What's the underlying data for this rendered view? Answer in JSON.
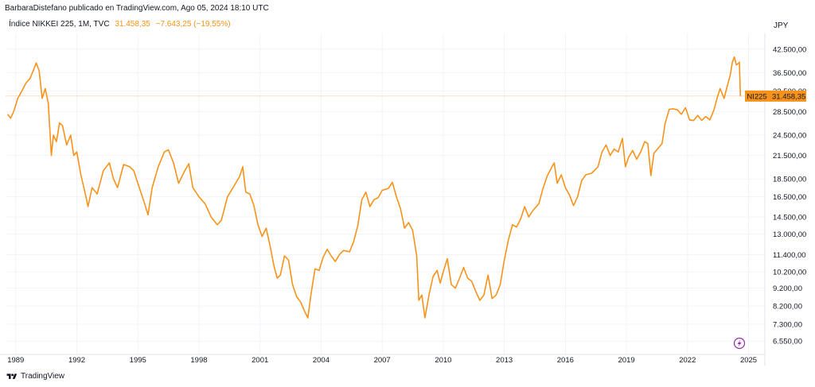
{
  "header": {
    "caption": "BarbaraDistefano publicado en TradingView.com, Ago 05, 2024 18:10 UTC"
  },
  "legend": {
    "symbol": "Índice NIKKEI 225, 1M, TVC",
    "last": "31.458,35",
    "change": "−7.643,25 (−19,55%)"
  },
  "footer": {
    "brand": "TradingView",
    "logo_icon": "tradingview-logo-icon"
  },
  "colors": {
    "line": "#f7931a",
    "price_tag": "#f7931a",
    "grid": "#f0f3fa",
    "text": "#131722",
    "flash": "#9c27b0"
  },
  "chart_data": {
    "type": "line",
    "scale": "log",
    "currency": "JPY",
    "symbol_tag": "NI225",
    "last_label": "31.458,35",
    "last_value": 31458.35,
    "ylim": [
      6200,
      47000
    ],
    "xlim": [
      1988.5,
      2025.8
    ],
    "y_ticks": [
      {
        "value": 42500,
        "label": "42.500,00"
      },
      {
        "value": 36500,
        "label": "36.500,00"
      },
      {
        "value": 32500,
        "label": "32.500,00"
      },
      {
        "value": 28500,
        "label": "28.500,00"
      },
      {
        "value": 24500,
        "label": "24.500,00"
      },
      {
        "value": 21500,
        "label": "21.500,00"
      },
      {
        "value": 18500,
        "label": "18.500,00"
      },
      {
        "value": 16500,
        "label": "16.500,00"
      },
      {
        "value": 14500,
        "label": "14.500,00"
      },
      {
        "value": 13000,
        "label": "13.000,00"
      },
      {
        "value": 11400,
        "label": "11.400,00"
      },
      {
        "value": 10200,
        "label": "10.200,00"
      },
      {
        "value": 9200,
        "label": "9.200,00"
      },
      {
        "value": 8200,
        "label": "8.200,00"
      },
      {
        "value": 7300,
        "label": "7.300,00"
      },
      {
        "value": 6550,
        "label": "6.550,00"
      }
    ],
    "x_ticks": [
      {
        "value": 1989,
        "label": "1989"
      },
      {
        "value": 1992,
        "label": "1992"
      },
      {
        "value": 1995,
        "label": "1995"
      },
      {
        "value": 1998,
        "label": "1998"
      },
      {
        "value": 2001,
        "label": "2001"
      },
      {
        "value": 2004,
        "label": "2004"
      },
      {
        "value": 2007,
        "label": "2007"
      },
      {
        "value": 2010,
        "label": "2010"
      },
      {
        "value": 2013,
        "label": "2013"
      },
      {
        "value": 2016,
        "label": "2016"
      },
      {
        "value": 2019,
        "label": "2019"
      },
      {
        "value": 2022,
        "label": "2022"
      },
      {
        "value": 2025,
        "label": "2025"
      }
    ],
    "series": [
      {
        "points": [
          [
            1988.6,
            28000
          ],
          [
            1988.75,
            27300
          ],
          [
            1988.9,
            28500
          ],
          [
            1989.1,
            31000
          ],
          [
            1989.3,
            32500
          ],
          [
            1989.5,
            34200
          ],
          [
            1989.7,
            35200
          ],
          [
            1989.9,
            37500
          ],
          [
            1990.0,
            38900
          ],
          [
            1990.15,
            37000
          ],
          [
            1990.3,
            31000
          ],
          [
            1990.45,
            33000
          ],
          [
            1990.6,
            30000
          ],
          [
            1990.75,
            21500
          ],
          [
            1990.85,
            24500
          ],
          [
            1991.0,
            23500
          ],
          [
            1991.15,
            26500
          ],
          [
            1991.3,
            26000
          ],
          [
            1991.5,
            23000
          ],
          [
            1991.7,
            24500
          ],
          [
            1991.85,
            21500
          ],
          [
            1992.0,
            22000
          ],
          [
            1992.2,
            19000
          ],
          [
            1992.4,
            17000
          ],
          [
            1992.55,
            15500
          ],
          [
            1992.75,
            17500
          ],
          [
            1993.0,
            16800
          ],
          [
            1993.3,
            19500
          ],
          [
            1993.6,
            20500
          ],
          [
            1993.8,
            18500
          ],
          [
            1994.0,
            17500
          ],
          [
            1994.3,
            20300
          ],
          [
            1994.6,
            20000
          ],
          [
            1994.8,
            19500
          ],
          [
            1995.0,
            18000
          ],
          [
            1995.3,
            16000
          ],
          [
            1995.5,
            14700
          ],
          [
            1995.7,
            17500
          ],
          [
            1996.0,
            20000
          ],
          [
            1996.3,
            22000
          ],
          [
            1996.5,
            22300
          ],
          [
            1996.75,
            20500
          ],
          [
            1997.0,
            18000
          ],
          [
            1997.3,
            19500
          ],
          [
            1997.5,
            20400
          ],
          [
            1997.7,
            17500
          ],
          [
            1998.0,
            16500
          ],
          [
            1998.3,
            15800
          ],
          [
            1998.6,
            14500
          ],
          [
            1998.9,
            13800
          ],
          [
            1999.1,
            14200
          ],
          [
            1999.4,
            16500
          ],
          [
            1999.7,
            17600
          ],
          [
            2000.0,
            18800
          ],
          [
            2000.15,
            20000
          ],
          [
            2000.3,
            17000
          ],
          [
            2000.5,
            16800
          ],
          [
            2000.7,
            15600
          ],
          [
            2000.9,
            13800
          ],
          [
            2001.1,
            12800
          ],
          [
            2001.3,
            13500
          ],
          [
            2001.5,
            12000
          ],
          [
            2001.7,
            10500
          ],
          [
            2001.85,
            9800
          ],
          [
            2002.0,
            10000
          ],
          [
            2002.2,
            11300
          ],
          [
            2002.4,
            11000
          ],
          [
            2002.6,
            9400
          ],
          [
            2002.8,
            8700
          ],
          [
            2003.0,
            8400
          ],
          [
            2003.2,
            7900
          ],
          [
            2003.35,
            7600
          ],
          [
            2003.5,
            8800
          ],
          [
            2003.7,
            10400
          ],
          [
            2003.9,
            10300
          ],
          [
            2004.1,
            11200
          ],
          [
            2004.3,
            11800
          ],
          [
            2004.5,
            11300
          ],
          [
            2004.7,
            10900
          ],
          [
            2004.9,
            11400
          ],
          [
            2005.1,
            11700
          ],
          [
            2005.4,
            11600
          ],
          [
            2005.6,
            12400
          ],
          [
            2005.8,
            13700
          ],
          [
            2006.0,
            16200
          ],
          [
            2006.2,
            17000
          ],
          [
            2006.4,
            15500
          ],
          [
            2006.6,
            16200
          ],
          [
            2006.8,
            16400
          ],
          [
            2007.0,
            17200
          ],
          [
            2007.3,
            17400
          ],
          [
            2007.5,
            18100
          ],
          [
            2007.7,
            16500
          ],
          [
            2007.9,
            15300
          ],
          [
            2008.1,
            13500
          ],
          [
            2008.3,
            14000
          ],
          [
            2008.5,
            13300
          ],
          [
            2008.7,
            11300
          ],
          [
            2008.8,
            8500
          ],
          [
            2008.95,
            8800
          ],
          [
            2009.1,
            7600
          ],
          [
            2009.3,
            8800
          ],
          [
            2009.5,
            9900
          ],
          [
            2009.7,
            10300
          ],
          [
            2009.85,
            9500
          ],
          [
            2010.0,
            10200
          ],
          [
            2010.2,
            11100
          ],
          [
            2010.4,
            9400
          ],
          [
            2010.6,
            9200
          ],
          [
            2010.8,
            9800
          ],
          [
            2011.0,
            10500
          ],
          [
            2011.2,
            9800
          ],
          [
            2011.4,
            9600
          ],
          [
            2011.6,
            9000
          ],
          [
            2011.8,
            8500
          ],
          [
            2012.0,
            8800
          ],
          [
            2012.2,
            10000
          ],
          [
            2012.4,
            8600
          ],
          [
            2012.6,
            8800
          ],
          [
            2012.8,
            9400
          ],
          [
            2013.0,
            11000
          ],
          [
            2013.2,
            12500
          ],
          [
            2013.4,
            13800
          ],
          [
            2013.6,
            13600
          ],
          [
            2013.8,
            14300
          ],
          [
            2014.0,
            15500
          ],
          [
            2014.2,
            14500
          ],
          [
            2014.4,
            15100
          ],
          [
            2014.7,
            15800
          ],
          [
            2014.9,
            17400
          ],
          [
            2015.1,
            18800
          ],
          [
            2015.3,
            19800
          ],
          [
            2015.45,
            20500
          ],
          [
            2015.6,
            18000
          ],
          [
            2015.8,
            19000
          ],
          [
            2016.0,
            17500
          ],
          [
            2016.2,
            16700
          ],
          [
            2016.4,
            15600
          ],
          [
            2016.6,
            16500
          ],
          [
            2016.8,
            18300
          ],
          [
            2017.0,
            19000
          ],
          [
            2017.3,
            19200
          ],
          [
            2017.6,
            20000
          ],
          [
            2017.8,
            22000
          ],
          [
            2018.0,
            23000
          ],
          [
            2018.2,
            21500
          ],
          [
            2018.4,
            22400
          ],
          [
            2018.6,
            22000
          ],
          [
            2018.8,
            24000
          ],
          [
            2018.95,
            20000
          ],
          [
            2019.1,
            21200
          ],
          [
            2019.3,
            22200
          ],
          [
            2019.5,
            21000
          ],
          [
            2019.7,
            22000
          ],
          [
            2019.9,
            23500
          ],
          [
            2020.05,
            23200
          ],
          [
            2020.2,
            18900
          ],
          [
            2020.35,
            21800
          ],
          [
            2020.55,
            22500
          ],
          [
            2020.75,
            23200
          ],
          [
            2020.9,
            26400
          ],
          [
            2021.1,
            28900
          ],
          [
            2021.3,
            29000
          ],
          [
            2021.5,
            28800
          ],
          [
            2021.7,
            28000
          ],
          [
            2021.9,
            29200
          ],
          [
            2022.1,
            27000
          ],
          [
            2022.3,
            26900
          ],
          [
            2022.5,
            27800
          ],
          [
            2022.7,
            26900
          ],
          [
            2022.9,
            27600
          ],
          [
            2023.1,
            27000
          ],
          [
            2023.3,
            28800
          ],
          [
            2023.45,
            31000
          ],
          [
            2023.6,
            33000
          ],
          [
            2023.8,
            31000
          ],
          [
            2023.95,
            33500
          ],
          [
            2024.1,
            36000
          ],
          [
            2024.2,
            39000
          ],
          [
            2024.3,
            40400
          ],
          [
            2024.4,
            38400
          ],
          [
            2024.5,
            38800
          ],
          [
            2024.55,
            39100
          ],
          [
            2024.6,
            31458.35
          ]
        ]
      }
    ]
  }
}
